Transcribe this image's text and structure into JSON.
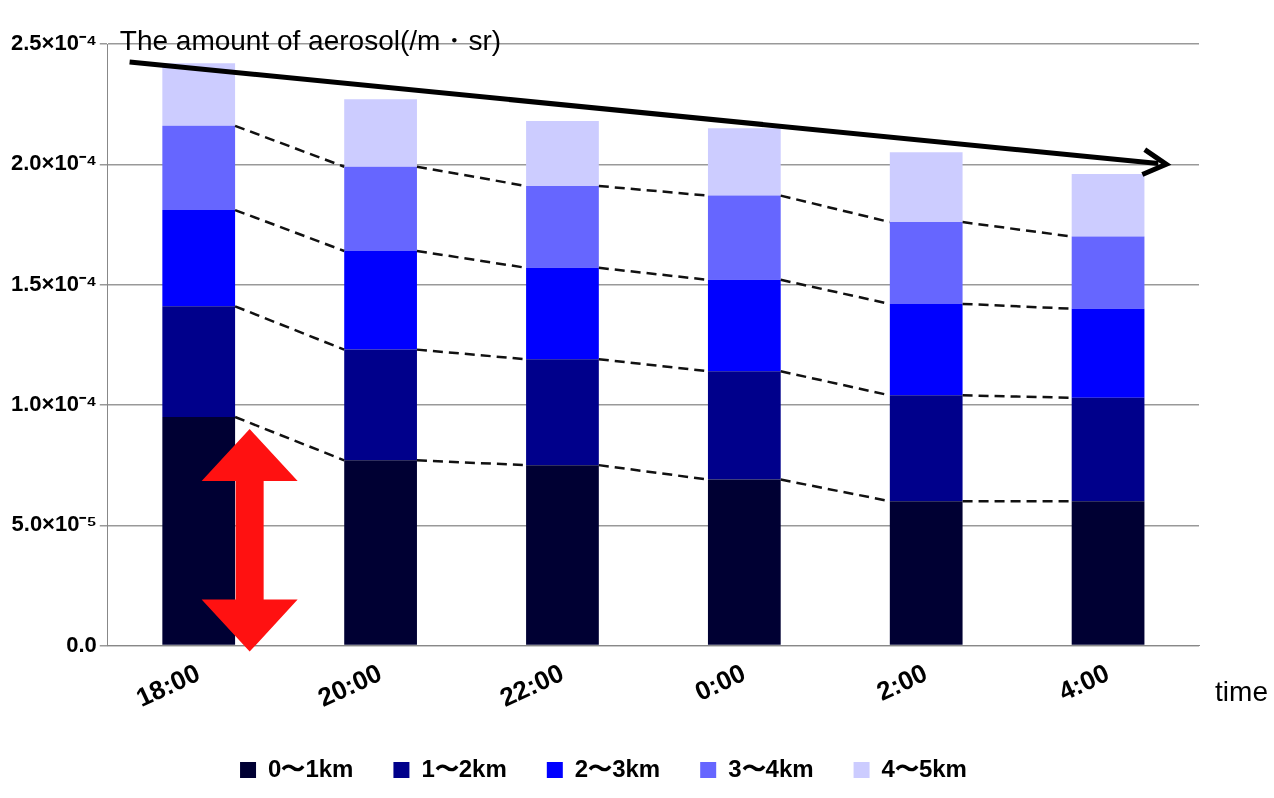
{
  "chart_data": {
    "type": "bar",
    "stacked": true,
    "title": "The amount of aerosol(/m・sr)",
    "xlabel": "time",
    "categories": [
      "18:00",
      "20:00",
      "22:00",
      "0:00",
      "2:00",
      "4:00"
    ],
    "series": [
      {
        "name": "0〜1km",
        "color": "#000033",
        "values": [
          9.5e-05,
          7.7e-05,
          7.5e-05,
          6.9e-05,
          6e-05,
          6e-05
        ]
      },
      {
        "name": "1〜2km",
        "color": "#00008b",
        "values": [
          4.6e-05,
          4.6e-05,
          4.4e-05,
          4.5e-05,
          4.4e-05,
          4.3e-05
        ]
      },
      {
        "name": "2〜3km",
        "color": "#0000ff",
        "values": [
          4e-05,
          4.1e-05,
          3.8e-05,
          3.8e-05,
          3.8e-05,
          3.7e-05
        ]
      },
      {
        "name": "3〜4km",
        "color": "#6666ff",
        "values": [
          3.5e-05,
          3.5e-05,
          3.4e-05,
          3.5e-05,
          3.4e-05,
          3e-05
        ]
      },
      {
        "name": "4〜5km",
        "color": "#ccccff",
        "values": [
          2.6e-05,
          2.8e-05,
          2.7e-05,
          2.8e-05,
          2.9e-05,
          2.6e-05
        ]
      }
    ],
    "ylim": [
      0,
      0.00025
    ],
    "yticks": [
      {
        "value": 0,
        "label": "0.0"
      },
      {
        "value": 5e-05,
        "label": "5.0×10⁻⁵"
      },
      {
        "value": 0.0001,
        "label": "1.0×10⁻⁴"
      },
      {
        "value": 0.00015,
        "label": "1.5×10⁻⁴"
      },
      {
        "value": 0.0002,
        "label": "2.0×10⁻⁴"
      },
      {
        "value": 0.00025,
        "label": "2.5×10⁻⁴"
      }
    ],
    "grid": "y",
    "legend": "bottom"
  }
}
